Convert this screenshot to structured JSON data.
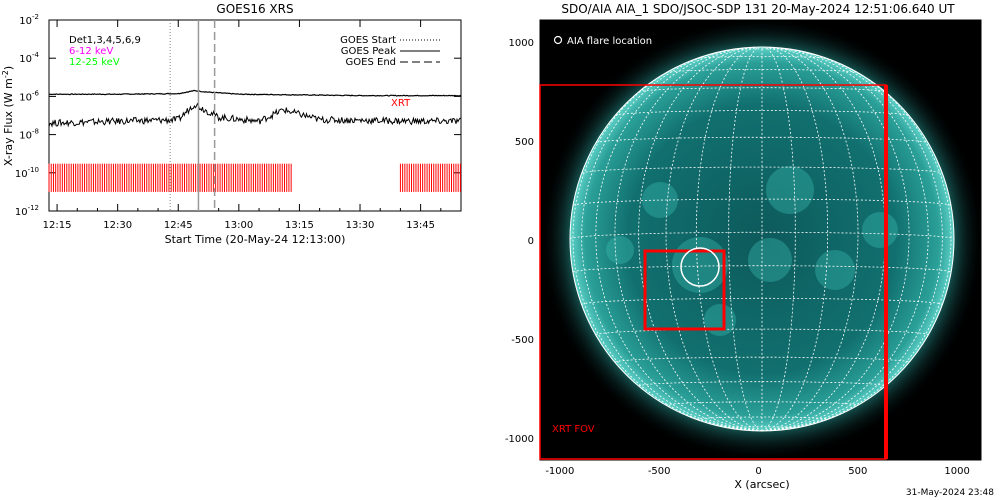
{
  "goes": {
    "title": "GOES16 XRS",
    "ylabel": "X-ray Flux (W m",
    "ylabel_sup": "-2",
    "ylabel_end": ")",
    "xlabel": "Start Time (20-May-24 12:13:00)",
    "overlay_labels": [
      {
        "text": "Det1,3,4,5,6,9",
        "color": "#000000"
      },
      {
        "text": "6-12 keV",
        "color": "#ff00ff"
      },
      {
        "text": "12-25 keV",
        "color": "#00ff00"
      }
    ],
    "legend": {
      "start": "GOES Start",
      "peak": "GOES Peak",
      "end": "GOES End"
    },
    "xrt_label": "XRT",
    "y_ticks": [
      {
        "base": "10",
        "exp": "-2",
        "val": -2
      },
      {
        "base": "10",
        "exp": "-4",
        "val": -4
      },
      {
        "base": "10",
        "exp": "-6",
        "val": -6
      },
      {
        "base": "10",
        "exp": "-8",
        "val": -8
      },
      {
        "base": "10",
        "exp": "-10",
        "val": -10
      },
      {
        "base": "10",
        "exp": "-12",
        "val": -12
      }
    ],
    "x_ticks": [
      "12:15",
      "12:30",
      "12:45",
      "13:00",
      "13:15",
      "13:30",
      "13:45"
    ]
  },
  "aia": {
    "title": "SDO/AIA AIA_1 SDO/JSOC-SDP 131 20-May-2024 12:51:06.640 UT",
    "flare_label": "AIA flare location",
    "fov_label": "XRT FOV",
    "xlabel": "X (arcsec)",
    "x_ticks": [
      "-1000",
      "-500",
      "0",
      "500",
      "1000"
    ],
    "y_ticks": [
      "1000",
      "500",
      "0",
      "-500",
      "-1000"
    ]
  },
  "footer_timestamp": "31-May-2024 23:48",
  "colors": {
    "xrt": "#ff0000",
    "disk": "#1e8a86",
    "limb": "#7ef0e8",
    "bg": "#000000"
  },
  "chart_data": [
    {
      "type": "line",
      "title": "GOES16 XRS",
      "xlabel": "Start Time (20-May-24 12:13:00)",
      "ylabel": "X-ray Flux (W m-2)",
      "yscale": "log",
      "ylim": [
        1e-12,
        0.01
      ],
      "xlim": [
        "12:13",
        "13:55"
      ],
      "series": [
        {
          "name": "long",
          "x": [
            "12:13",
            "12:30",
            "12:45",
            "12:49",
            "12:52",
            "13:00",
            "13:15",
            "13:30",
            "13:45",
            "13:55"
          ],
          "values": [
            1.3e-06,
            1.3e-06,
            1.4e-06,
            2e-06,
            1.7e-06,
            1.3e-06,
            1.2e-06,
            1.1e-06,
            1.1e-06,
            1.1e-06
          ]
        },
        {
          "name": "short",
          "x": [
            "12:13",
            "12:30",
            "12:45",
            "12:49",
            "12:55",
            "13:05",
            "13:11",
            "13:20",
            "13:45",
            "13:55"
          ],
          "values": [
            4e-08,
            5e-08,
            6e-08,
            4e-07,
            8e-08,
            5e-08,
            2e-07,
            6e-08,
            5e-08,
            5e-08
          ]
        }
      ],
      "markers": {
        "goes_start": "12:43",
        "goes_peak": "12:50",
        "goes_end": "12:54"
      },
      "xrt_intervals": [
        [
          "12:13",
          "13:13"
        ],
        [
          "13:40",
          "13:55"
        ]
      ],
      "grid": false
    },
    {
      "type": "image",
      "title": "SDO/AIA AIA_1 SDO/JSOC-SDP 131 20-May-2024 12:51:06.640 UT",
      "xlabel": "X (arcsec)",
      "xlim": [
        -1100,
        1120
      ],
      "ylim": [
        -1110,
        1110
      ],
      "xrt_fov": {
        "x": [
          -1100,
          620
        ],
        "y": [
          -1100,
          780
        ]
      },
      "xrt_box": {
        "x": [
          -590,
          -190
        ],
        "y": [
          -450,
          -60
        ]
      },
      "flare_location": {
        "x": -310,
        "y": -140
      }
    }
  ]
}
